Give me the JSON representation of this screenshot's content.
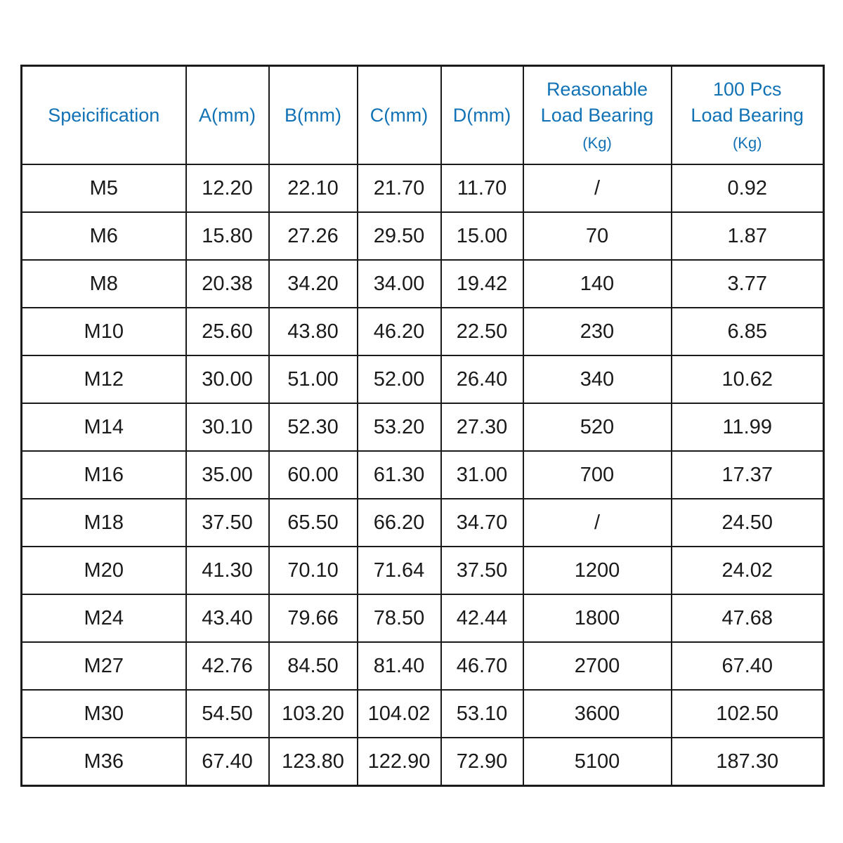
{
  "page": {
    "background": "#ffffff"
  },
  "colors": {
    "header_text": "#1272b6",
    "spec_label_text": "#1d84c6",
    "data_text": "#1a1a1a",
    "border": "#1a1a1a",
    "table_background": "#ffffff"
  },
  "table": {
    "headers": [
      {
        "label": "Speicification",
        "sub": ""
      },
      {
        "label": "A(mm)",
        "sub": ""
      },
      {
        "label": "B(mm)",
        "sub": ""
      },
      {
        "label": "C(mm)",
        "sub": ""
      },
      {
        "label": "D(mm)",
        "sub": ""
      },
      {
        "label": "Reasonable\nLoad Bearing",
        "sub": "(Kg)"
      },
      {
        "label": "100 Pcs\nLoad Bearing",
        "sub": "(Kg)"
      }
    ],
    "rows": [
      {
        "spec": "M5",
        "values": [
          "12.20",
          "22.10",
          "21.70",
          "11.70",
          "/",
          "0.92"
        ]
      },
      {
        "spec": "M6",
        "values": [
          "15.80",
          "27.26",
          "29.50",
          "15.00",
          "70",
          "1.87"
        ]
      },
      {
        "spec": "M8",
        "values": [
          "20.38",
          "34.20",
          "34.00",
          "19.42",
          "140",
          "3.77"
        ]
      },
      {
        "spec": "M10",
        "values": [
          "25.60",
          "43.80",
          "46.20",
          "22.50",
          "230",
          "6.85"
        ]
      },
      {
        "spec": "M12",
        "values": [
          "30.00",
          "51.00",
          "52.00",
          "26.40",
          "340",
          "10.62"
        ]
      },
      {
        "spec": "M14",
        "values": [
          "30.10",
          "52.30",
          "53.20",
          "27.30",
          "520",
          "11.99"
        ]
      },
      {
        "spec": "M16",
        "values": [
          "35.00",
          "60.00",
          "61.30",
          "31.00",
          "700",
          "17.37"
        ]
      },
      {
        "spec": "M18",
        "values": [
          "37.50",
          "65.50",
          "66.20",
          "34.70",
          "/",
          "24.50"
        ]
      },
      {
        "spec": "M20",
        "values": [
          "41.30",
          "70.10",
          "71.64",
          "37.50",
          "1200",
          "24.02"
        ]
      },
      {
        "spec": "M24",
        "values": [
          "43.40",
          "79.66",
          "78.50",
          "42.44",
          "1800",
          "47.68"
        ]
      },
      {
        "spec": "M27",
        "values": [
          "42.76",
          "84.50",
          "81.40",
          "46.70",
          "2700",
          "67.40"
        ]
      },
      {
        "spec": "M30",
        "values": [
          "54.50",
          "103.20",
          "104.02",
          "53.10",
          "3600",
          "102.50"
        ]
      },
      {
        "spec": "M36",
        "values": [
          "67.40",
          "123.80",
          "122.90",
          "72.90",
          "5100",
          "187.30"
        ]
      }
    ]
  },
  "chart_data": {
    "type": "table",
    "title": "",
    "columns": [
      "Speicification",
      "A(mm)",
      "B(mm)",
      "C(mm)",
      "D(mm)",
      "Reasonable Load Bearing (Kg)",
      "100 Pcs Load Bearing (Kg)"
    ],
    "rows": [
      [
        "M5",
        12.2,
        22.1,
        21.7,
        11.7,
        null,
        0.92
      ],
      [
        "M6",
        15.8,
        27.26,
        29.5,
        15.0,
        70,
        1.87
      ],
      [
        "M8",
        20.38,
        34.2,
        34.0,
        19.42,
        140,
        3.77
      ],
      [
        "M10",
        25.6,
        43.8,
        46.2,
        22.5,
        230,
        6.85
      ],
      [
        "M12",
        30.0,
        51.0,
        52.0,
        26.4,
        340,
        10.62
      ],
      [
        "M14",
        30.1,
        52.3,
        53.2,
        27.3,
        520,
        11.99
      ],
      [
        "M16",
        35.0,
        60.0,
        61.3,
        31.0,
        700,
        17.37
      ],
      [
        "M18",
        37.5,
        65.5,
        66.2,
        34.7,
        null,
        24.5
      ],
      [
        "M20",
        41.3,
        70.1,
        71.64,
        37.5,
        1200,
        24.02
      ],
      [
        "M24",
        43.4,
        79.66,
        78.5,
        42.44,
        1800,
        47.68
      ],
      [
        "M27",
        42.76,
        84.5,
        81.4,
        46.7,
        2700,
        67.4
      ],
      [
        "M30",
        54.5,
        103.2,
        104.02,
        53.1,
        3600,
        102.5
      ],
      [
        "M36",
        67.4,
        123.8,
        122.9,
        72.9,
        5100,
        187.3
      ]
    ]
  }
}
